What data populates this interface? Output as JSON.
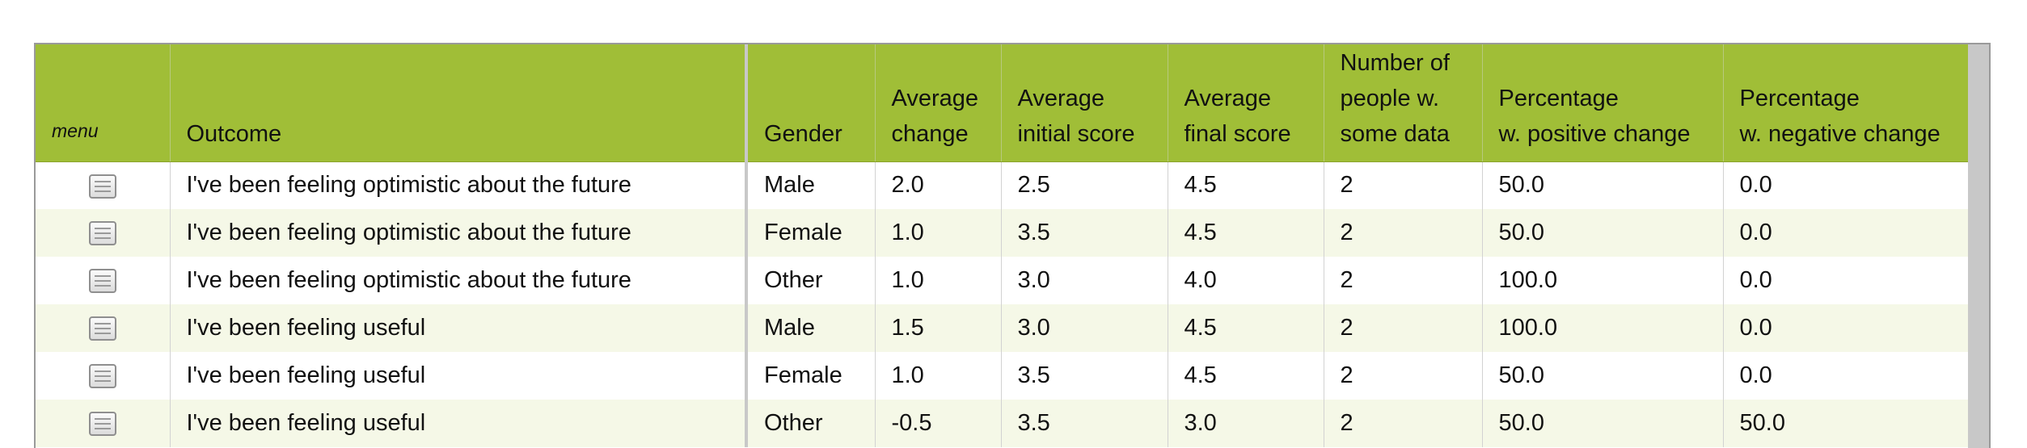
{
  "table": {
    "headers": {
      "menu": "menu",
      "outcome": "Outcome",
      "gender": "Gender",
      "avg_change_1": "Average",
      "avg_change_2": "change",
      "avg_initial_1": "Average",
      "avg_initial_2": "initial score",
      "avg_final_1": "Average",
      "avg_final_2": "final score",
      "num_people_1": "Number of",
      "num_people_2": "people w.",
      "num_people_3": "some data",
      "pct_pos_1": "Percentage",
      "pct_pos_2": "w. positive change",
      "pct_neg_1": "Percentage",
      "pct_neg_2": "w. negative change"
    },
    "menu_icon": "list-menu-icon",
    "rows": [
      {
        "outcome": "I've been feeling optimistic about the future",
        "gender": "Male",
        "avg_change": "2.0",
        "avg_initial": "2.5",
        "avg_final": "4.5",
        "num_people": "2",
        "pct_pos": "50.0",
        "pct_neg": "0.0"
      },
      {
        "outcome": "I've been feeling optimistic about the future",
        "gender": "Female",
        "avg_change": "1.0",
        "avg_initial": "3.5",
        "avg_final": "4.5",
        "num_people": "2",
        "pct_pos": "50.0",
        "pct_neg": "0.0"
      },
      {
        "outcome": "I've been feeling optimistic about the future",
        "gender": "Other",
        "avg_change": "1.0",
        "avg_initial": "3.0",
        "avg_final": "4.0",
        "num_people": "2",
        "pct_pos": "100.0",
        "pct_neg": "0.0"
      },
      {
        "outcome": "I've been feeling useful",
        "gender": "Male",
        "avg_change": "1.5",
        "avg_initial": "3.0",
        "avg_final": "4.5",
        "num_people": "2",
        "pct_pos": "100.0",
        "pct_neg": "0.0"
      },
      {
        "outcome": "I've been feeling useful",
        "gender": "Female",
        "avg_change": "1.0",
        "avg_initial": "3.5",
        "avg_final": "4.5",
        "num_people": "2",
        "pct_pos": "50.0",
        "pct_neg": "0.0"
      },
      {
        "outcome": "I've been feeling useful",
        "gender": "Other",
        "avg_change": "-0.5",
        "avg_initial": "3.5",
        "avg_final": "3.0",
        "num_people": "2",
        "pct_pos": "50.0",
        "pct_neg": "50.0"
      }
    ]
  },
  "colors": {
    "header_bg": "#a0be37",
    "row_alt_bg": "#f5f8e7",
    "scrollbar": "#c8c8c8"
  }
}
